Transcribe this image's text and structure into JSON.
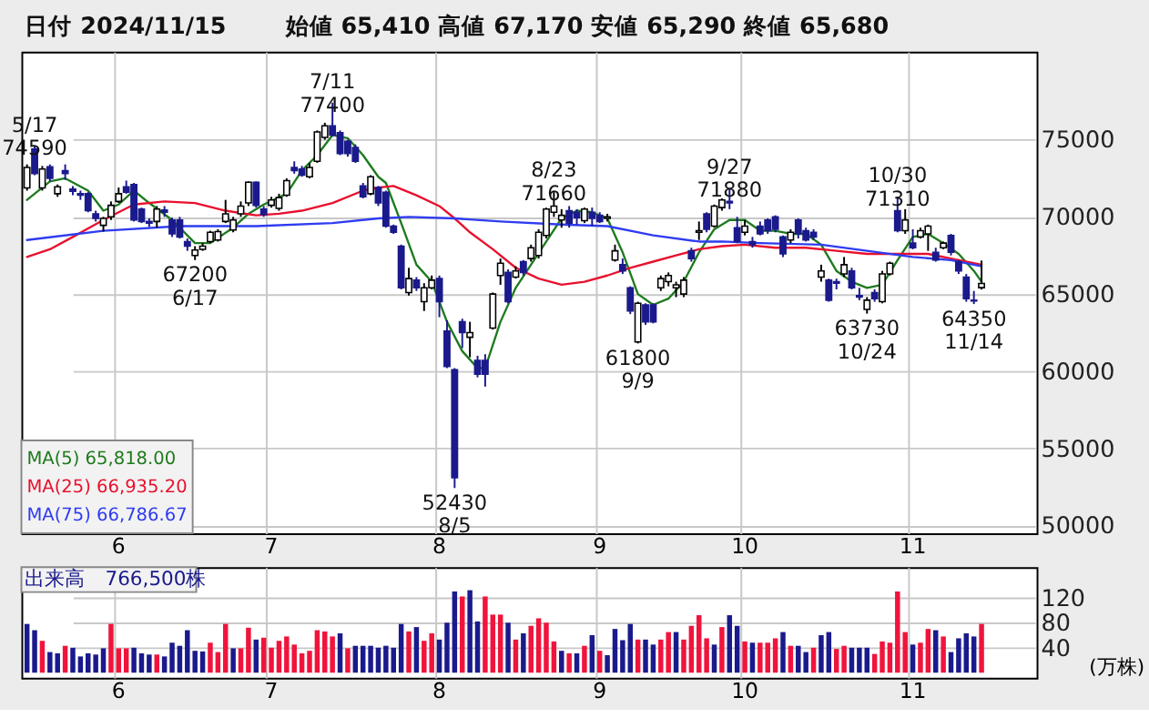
{
  "chart_data": [
    {
      "type": "candlestick",
      "title": "日付 2024/11/15",
      "subtitle": "始値 65,410  高値 67,170  安値 65,290  終値 65,680",
      "categories": [
        null,
        null,
        null,
        null,
        null,
        null,
        null,
        null,
        null,
        null,
        null,
        null,
        "6",
        null,
        null,
        null,
        null,
        null,
        null,
        null,
        null,
        null,
        null,
        null,
        null,
        null,
        null,
        null,
        null,
        null,
        null,
        null,
        "7",
        null,
        null,
        null,
        null,
        null,
        null,
        null,
        null,
        null,
        null,
        null,
        null,
        null,
        null,
        null,
        null,
        null,
        null,
        null,
        null,
        null,
        "8",
        null,
        null,
        null,
        null,
        null,
        null,
        null,
        null,
        null,
        null,
        null,
        null,
        null,
        null,
        null,
        null,
        null,
        null,
        null,
        null,
        "9",
        null,
        null,
        null,
        null,
        null,
        null,
        null,
        null,
        null,
        null,
        null,
        null,
        null,
        null,
        null,
        null,
        null,
        null,
        "10",
        null,
        null,
        null,
        null,
        null,
        null,
        null,
        null,
        null,
        null,
        null,
        null,
        null,
        null,
        null,
        null,
        null,
        null,
        null,
        null,
        null,
        "11",
        null,
        null,
        null,
        null,
        null,
        null,
        null,
        null,
        null
      ],
      "ohlc": [
        [
          71880,
          73400,
          71700,
          73200
        ],
        [
          74400,
          74590,
          72700,
          72800
        ],
        [
          71880,
          73300,
          71700,
          73100
        ],
        [
          73250,
          73400,
          72300,
          72500
        ],
        [
          71500,
          72100,
          71300,
          71950
        ],
        [
          73000,
          73400,
          72400,
          72800
        ],
        [
          71800,
          72000,
          71400,
          71650
        ],
        [
          71500,
          71700,
          71100,
          71400
        ],
        [
          71500,
          71600,
          70300,
          70400
        ],
        [
          70200,
          70400,
          69700,
          69900
        ],
        [
          69450,
          70000,
          69050,
          69900
        ],
        [
          70000,
          71000,
          69800,
          70750
        ],
        [
          71000,
          71900,
          70900,
          71500
        ],
        [
          71950,
          72350,
          71500,
          71600
        ],
        [
          72100,
          72200,
          69700,
          69800
        ],
        [
          70500,
          70600,
          69600,
          69700
        ],
        [
          69700,
          69900,
          69350,
          69600
        ],
        [
          69700,
          70700,
          69300,
          70500
        ],
        [
          70450,
          70700,
          70000,
          70300
        ],
        [
          69800,
          69950,
          68700,
          68900
        ],
        [
          69800,
          70000,
          68600,
          68700
        ],
        [
          68400,
          68600,
          67800,
          68100
        ],
        [
          67500,
          68100,
          67200,
          67850
        ],
        [
          67900,
          68300,
          67800,
          68100
        ],
        [
          68400,
          69100,
          68300,
          69000
        ],
        [
          68500,
          69200,
          68400,
          69050
        ],
        [
          69700,
          71100,
          69600,
          70200
        ],
        [
          69150,
          70000,
          69000,
          69800
        ],
        [
          70200,
          71000,
          70000,
          70700
        ],
        [
          70900,
          72300,
          70700,
          72250
        ],
        [
          72250,
          72300,
          70600,
          70750
        ],
        [
          70500,
          70700,
          70000,
          70150
        ],
        [
          70750,
          71300,
          70600,
          71100
        ],
        [
          70550,
          71500,
          70400,
          71250
        ],
        [
          71400,
          72500,
          71300,
          72350
        ],
        [
          73200,
          73600,
          72800,
          73000
        ],
        [
          73100,
          73300,
          72600,
          72700
        ],
        [
          72600,
          73500,
          72500,
          73200
        ],
        [
          73600,
          75600,
          73500,
          75500
        ],
        [
          75150,
          76100,
          75000,
          75900
        ],
        [
          75900,
          77400,
          75200,
          75300
        ],
        [
          75450,
          75600,
          74000,
          74100
        ],
        [
          74900,
          75000,
          73900,
          74100
        ],
        [
          74500,
          74700,
          73500,
          73600
        ],
        [
          72000,
          72200,
          71200,
          71300
        ],
        [
          71500,
          72700,
          71400,
          72600
        ],
        [
          71900,
          72000,
          70700,
          70900
        ],
        [
          71600,
          71700,
          69300,
          69400
        ],
        [
          69400,
          69500,
          68900,
          69000
        ],
        [
          68100,
          68200,
          65300,
          65400
        ],
        [
          65100,
          66700,
          64900,
          66000
        ],
        [
          65900,
          66100,
          65200,
          65400
        ],
        [
          64500,
          65700,
          63900,
          65400
        ],
        [
          65400,
          66200,
          65300,
          65900
        ],
        [
          66000,
          66200,
          63500,
          64500
        ],
        [
          62600,
          63300,
          60200,
          60300
        ],
        [
          60100,
          60200,
          52430,
          53100
        ],
        [
          63200,
          63400,
          61500,
          62500
        ],
        [
          62200,
          63200,
          60900,
          62500
        ],
        [
          60700,
          61000,
          59600,
          59800
        ],
        [
          60700,
          61100,
          59000,
          59800
        ],
        [
          62800,
          65100,
          62700,
          65000
        ],
        [
          66200,
          67300,
          65600,
          67000
        ],
        [
          66400,
          66600,
          64400,
          64500
        ],
        [
          66100,
          66800,
          66000,
          66500
        ],
        [
          67100,
          67200,
          66200,
          66400
        ],
        [
          67300,
          68200,
          67100,
          68000
        ],
        [
          67500,
          69200,
          67300,
          69000
        ],
        [
          68800,
          70600,
          68600,
          70500
        ],
        [
          70300,
          71660,
          70000,
          70700
        ],
        [
          69800,
          70500,
          69300,
          70100
        ],
        [
          70400,
          70700,
          69300,
          69600
        ],
        [
          70300,
          70500,
          69500,
          69950
        ],
        [
          69750,
          70600,
          69600,
          70500
        ],
        [
          70300,
          70600,
          69400,
          69900
        ],
        [
          70100,
          70300,
          69600,
          69700
        ],
        [
          69900,
          70200,
          69700,
          70000
        ],
        [
          67200,
          68200,
          67100,
          67800
        ],
        [
          66900,
          67300,
          66300,
          66500
        ],
        [
          65400,
          65500,
          63700,
          63900
        ],
        [
          61900,
          64500,
          61800,
          64400
        ],
        [
          64300,
          64400,
          63000,
          63200
        ],
        [
          64300,
          64400,
          63100,
          63200
        ],
        [
          65400,
          66200,
          65200,
          66000
        ],
        [
          65800,
          66400,
          65500,
          66200
        ],
        [
          65400,
          65800,
          64800,
          65600
        ],
        [
          65000,
          66100,
          64800,
          65900
        ],
        [
          67800,
          68000,
          67100,
          67300
        ],
        [
          69000,
          69700,
          68500,
          69100
        ],
        [
          70200,
          70300,
          69000,
          69200
        ],
        [
          69400,
          70800,
          69300,
          70700
        ],
        [
          70600,
          71200,
          70400,
          71100
        ],
        [
          71000,
          71880,
          70500,
          70900
        ],
        [
          69300,
          70000,
          68300,
          68400
        ],
        [
          69000,
          69800,
          68800,
          69400
        ],
        [
          68400,
          68700,
          68000,
          68200
        ],
        [
          69400,
          69700,
          68800,
          68900
        ],
        [
          69800,
          69900,
          68900,
          69100
        ],
        [
          70000,
          70100,
          69000,
          69200
        ],
        [
          68700,
          68800,
          67400,
          67600
        ],
        [
          68500,
          69200,
          68300,
          69000
        ],
        [
          69800,
          69900,
          68600,
          68900
        ],
        [
          69100,
          69300,
          68400,
          68500
        ],
        [
          69000,
          69200,
          68500,
          68700
        ],
        [
          66100,
          66900,
          65800,
          66500
        ],
        [
          65900,
          66000,
          64500,
          64600
        ],
        [
          65800,
          66000,
          65300,
          65700
        ],
        [
          66300,
          67400,
          66100,
          66900
        ],
        [
          66500,
          66700,
          65300,
          65400
        ],
        [
          64900,
          65400,
          64600,
          64800
        ],
        [
          64000,
          64800,
          63730,
          64600
        ],
        [
          65100,
          65300,
          64500,
          64700
        ],
        [
          64500,
          66500,
          64400,
          66300
        ],
        [
          66300,
          67100,
          66200,
          67000
        ],
        [
          70400,
          71310,
          69000,
          69100
        ],
        [
          69100,
          70500,
          68900,
          69800
        ],
        [
          68300,
          69200,
          67900,
          68000
        ],
        [
          68700,
          69300,
          68600,
          69100
        ],
        [
          68900,
          69500,
          67800,
          69400
        ],
        [
          67700,
          68000,
          67100,
          67200
        ],
        [
          68000,
          68400,
          67900,
          68300
        ],
        [
          68800,
          68900,
          67500,
          67700
        ],
        [
          67100,
          67200,
          66300,
          66500
        ],
        [
          66100,
          66300,
          64500,
          64700
        ],
        [
          64600,
          65200,
          64350,
          64550
        ],
        [
          65410,
          67170,
          65290,
          65680
        ]
      ],
      "series": [
        {
          "name": "MA(5) 65,818.00",
          "type": "line",
          "color": "#1e7a1e",
          "values": [
            71100,
            null,
            null,
            72300,
            null,
            72500,
            null,
            null,
            71700,
            null,
            70400,
            null,
            70800,
            null,
            71700,
            null,
            70900,
            null,
            null,
            69800,
            null,
            null,
            68300,
            null,
            68300,
            null,
            null,
            69300,
            null,
            70200,
            null,
            70800,
            null,
            null,
            71500,
            null,
            73000,
            null,
            74000,
            null,
            75300,
            null,
            75100,
            null,
            74000,
            null,
            72600,
            72200,
            null,
            69600,
            null,
            66900,
            null,
            65800,
            null,
            63200,
            null,
            61300,
            null,
            60200,
            60200,
            null,
            63200,
            null,
            65400,
            null,
            66900,
            null,
            68400,
            null,
            69900,
            null,
            70400,
            null,
            70300,
            null,
            69900,
            null,
            67700,
            null,
            65000,
            null,
            64300,
            null,
            64700,
            null,
            65800,
            null,
            67700,
            null,
            69200,
            null,
            69800,
            null,
            69800,
            null,
            69100,
            null,
            69100,
            null,
            68900,
            null,
            68900,
            null,
            68200,
            null,
            66500,
            null,
            65800,
            null,
            65400,
            null,
            65600,
            null,
            67200,
            null,
            68700,
            null,
            68900,
            null,
            68300,
            null,
            67600,
            null,
            66500,
            65800
          ]
        },
        {
          "name": "MA(25) 66,935.20",
          "type": "line",
          "color": "#e8102e",
          "values": [
            67400,
            null,
            null,
            67900,
            null,
            null,
            68700,
            null,
            null,
            null,
            69800,
            null,
            null,
            null,
            70800,
            null,
            null,
            null,
            71000,
            null,
            null,
            null,
            70900,
            null,
            null,
            null,
            70400,
            null,
            null,
            null,
            70100,
            null,
            null,
            70200,
            null,
            null,
            70400,
            null,
            null,
            null,
            70900,
            null,
            null,
            null,
            71700,
            null,
            71900,
            null,
            72000,
            null,
            null,
            71400,
            null,
            null,
            70700,
            null,
            69900,
            null,
            69000,
            null,
            null,
            67900,
            null,
            null,
            66700,
            null,
            null,
            66000,
            null,
            null,
            65600,
            null,
            null,
            65800,
            null,
            null,
            66200,
            null,
            null,
            66700,
            null,
            null,
            67100,
            null,
            null,
            67500,
            null,
            null,
            67900,
            null,
            null,
            68100,
            null,
            null,
            68200,
            null,
            null,
            null,
            68000,
            null,
            null,
            null,
            68000,
            null,
            null,
            null,
            67800,
            null,
            null,
            null,
            67600,
            null,
            null,
            null,
            67600,
            null,
            null,
            null,
            67600,
            null,
            null,
            67300,
            null,
            null,
            null,
            66900
          ]
        },
        {
          "name": "MA(75) 66,786.67",
          "type": "line",
          "color": "#2f3cf0",
          "values": [
            68500,
            null,
            null,
            null,
            null,
            null,
            null,
            null,
            null,
            null,
            69100,
            null,
            null,
            null,
            null,
            null,
            null,
            null,
            null,
            null,
            69400,
            null,
            null,
            null,
            null,
            null,
            null,
            null,
            null,
            null,
            69400,
            null,
            null,
            null,
            null,
            null,
            null,
            null,
            null,
            null,
            69600,
            null,
            null,
            null,
            null,
            null,
            69900,
            null,
            null,
            null,
            70000,
            null,
            null,
            null,
            null,
            null,
            69900,
            null,
            null,
            null,
            null,
            null,
            69700,
            null,
            null,
            null,
            null,
            null,
            null,
            null,
            69500,
            null,
            null,
            null,
            null,
            null,
            69400,
            null,
            null,
            null,
            null,
            null,
            68800,
            null,
            null,
            null,
            null,
            null,
            68400,
            null,
            null,
            68400,
            null,
            null,
            null,
            null,
            68300,
            null,
            null,
            null,
            null,
            null,
            null,
            null,
            68200,
            null,
            null,
            null,
            null,
            null,
            67800,
            null,
            null,
            null,
            null,
            null,
            67400,
            null,
            null,
            null,
            null,
            67200,
            null,
            null,
            null,
            66800
          ]
        }
      ],
      "ylim": [
        49500,
        80700
      ],
      "yticks": [
        50000,
        55000,
        60000,
        65000,
        70000,
        75000
      ],
      "grid": true,
      "legend": "bottom left",
      "annotations": [
        {
          "text": "5/17 74590",
          "y": 74590
        },
        {
          "text": "67200 6/17",
          "y": 67200
        },
        {
          "text": "7/11 77400",
          "y": 77400
        },
        {
          "text": "52430 8/5",
          "y": 52430
        },
        {
          "text": "8/23 71660",
          "y": 71660
        },
        {
          "text": "61800 9/9",
          "y": 61800
        },
        {
          "text": "9/27 71880",
          "y": 71880
        },
        {
          "text": "63730 10/24",
          "y": 63730
        },
        {
          "text": "10/30 71310",
          "y": 71310
        },
        {
          "text": "64350 11/14",
          "y": 64350
        }
      ]
    },
    {
      "type": "bar",
      "title": "出来高　766,500株",
      "ylabel": "(万株)",
      "categories": [
        null,
        null,
        null,
        null,
        null,
        null,
        null,
        null,
        null,
        null,
        null,
        null,
        "6",
        null,
        null,
        null,
        null,
        null,
        null,
        null,
        null,
        null,
        null,
        null,
        null,
        null,
        null,
        null,
        null,
        null,
        null,
        null,
        "7",
        null,
        null,
        null,
        null,
        null,
        null,
        null,
        null,
        null,
        null,
        null,
        null,
        null,
        null,
        null,
        null,
        null,
        null,
        null,
        null,
        null,
        "8",
        null,
        null,
        null,
        null,
        null,
        null,
        null,
        null,
        null,
        null,
        null,
        null,
        null,
        null,
        null,
        null,
        null,
        null,
        null,
        null,
        "9",
        null,
        null,
        null,
        null,
        null,
        null,
        null,
        null,
        null,
        null,
        null,
        null,
        null,
        null,
        null,
        null,
        null,
        null,
        "10",
        null,
        null,
        null,
        null,
        null,
        null,
        null,
        null,
        null,
        null,
        null,
        null,
        null,
        null,
        null,
        null,
        null,
        null,
        null,
        null,
        null,
        "11",
        null,
        null,
        null,
        null,
        null,
        null,
        null,
        null,
        null
      ],
      "values": [
        78,
        68,
        51,
        33,
        31,
        43,
        40,
        26,
        31,
        29,
        39,
        78,
        39,
        39,
        40,
        31,
        29,
        29,
        26,
        48,
        43,
        68,
        35,
        34,
        48,
        33,
        78,
        39,
        39,
        72,
        53,
        56,
        40,
        51,
        58,
        45,
        31,
        35,
        68,
        66,
        58,
        63,
        39,
        43,
        43,
        43,
        40,
        43,
        40,
        78,
        66,
        73,
        51,
        63,
        53,
        80,
        130,
        122,
        132,
        82,
        122,
        93,
        93,
        80,
        53,
        63,
        75,
        87,
        80,
        50,
        35,
        31,
        31,
        43,
        60,
        35,
        28,
        70,
        52,
        78,
        53,
        53,
        45,
        53,
        65,
        65,
        53,
        75,
        92,
        55,
        45,
        73,
        92,
        75,
        50,
        48,
        48,
        48,
        55,
        65,
        43,
        43,
        33,
        40,
        60,
        65,
        38,
        43,
        40,
        40,
        40,
        30,
        50,
        48,
        130,
        65,
        45,
        48,
        70,
        68,
        58,
        33,
        55,
        63,
        58,
        78
      ],
      "colors": [
        "#1a1a8c",
        "#1a1a8c",
        "#f0143c",
        "#1a1a8c",
        "#1a1a8c",
        "#f0143c",
        "#1a1a8c",
        "#1a1a8c",
        "#1a1a8c",
        "#1a1a8c",
        "#1a1a8c",
        "#f0143c",
        "#f0143c",
        "#f0143c",
        "#1a1a8c",
        "#1a1a8c",
        "#1a1a8c",
        "#f0143c",
        "#1a1a8c",
        "#1a1a8c",
        "#1a1a8c",
        "#1a1a8c",
        "#1a1a8c",
        "#1a1a8c",
        "#f0143c",
        "#f0143c",
        "#f0143c",
        "#1a1a8c",
        "#f0143c",
        "#f0143c",
        "#1a1a8c",
        "#f0143c",
        "#f0143c",
        "#f0143c",
        "#f0143c",
        "#f0143c",
        "#f0143c",
        "#f0143c",
        "#f0143c",
        "#f0143c",
        "#f0143c",
        "#1a1a8c",
        "#f0143c",
        "#1a1a8c",
        "#1a1a8c",
        "#1a1a8c",
        "#1a1a8c",
        "#1a1a8c",
        "#1a1a8c",
        "#1a1a8c",
        "#f0143c",
        "#1a1a8c",
        "#f0143c",
        "#f0143c",
        "#1a1a8c",
        "#1a1a8c",
        "#1a1a8c",
        "#f0143c",
        "#1a1a8c",
        "#1a1a8c",
        "#f0143c",
        "#f0143c",
        "#f0143c",
        "#1a1a8c",
        "#f0143c",
        "#1a1a8c",
        "#f0143c",
        "#f0143c",
        "#f0143c",
        "#f0143c",
        "#1a1a8c",
        "#f0143c",
        "#1a1a8c",
        "#f0143c",
        "#1a1a8c",
        "#f0143c",
        "#1a1a8c",
        "#1a1a8c",
        "#1a1a8c",
        "#1a1a8c",
        "#f0143c",
        "#1a1a8c",
        "#1a1a8c",
        "#f0143c",
        "#f0143c",
        "#1a1a8c",
        "#f0143c",
        "#f0143c",
        "#f0143c",
        "#f0143c",
        "#1a1a8c",
        "#f0143c",
        "#1a1a8c",
        "#1a1a8c",
        "#f0143c",
        "#1a1a8c",
        "#f0143c",
        "#f0143c",
        "#f0143c",
        "#1a1a8c",
        "#f0143c",
        "#1a1a8c",
        "#1a1a8c",
        "#f0143c",
        "#1a1a8c",
        "#1a1a8c",
        "#f0143c",
        "#f0143c",
        "#1a1a8c",
        "#1a1a8c",
        "#1a1a8c",
        "#f0143c",
        "#f0143c",
        "#f0143c",
        "#f0143c",
        "#f0143c",
        "#1a1a8c",
        "#f0143c",
        "#f0143c",
        "#1a1a8c",
        "#f0143c",
        "#1a1a8c",
        "#1a1a8c",
        "#1a1a8c",
        "#1a1a8c",
        "#f0143c"
      ],
      "ylim": [
        -8,
        169
      ],
      "yticks": [
        40,
        80,
        120
      ],
      "grid": true
    }
  ]
}
